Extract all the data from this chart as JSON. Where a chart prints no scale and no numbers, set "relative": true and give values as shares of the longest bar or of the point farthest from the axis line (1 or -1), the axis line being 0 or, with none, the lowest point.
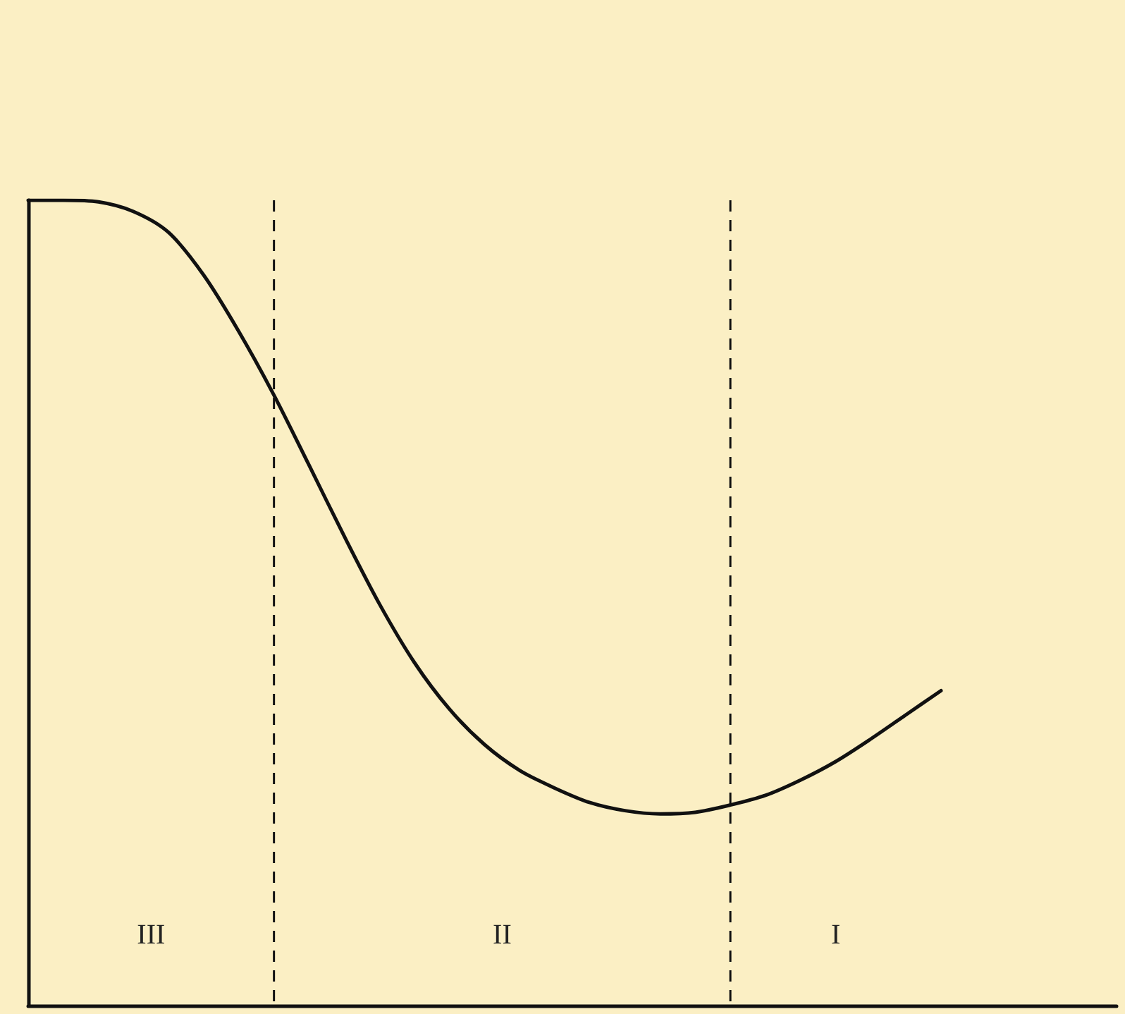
{
  "chart_data": {
    "type": "line",
    "relative": true,
    "color": "#111111",
    "categories": [
      null,
      null,
      null,
      null,
      null,
      null,
      null,
      null,
      null,
      null,
      null,
      null,
      null,
      null,
      null,
      null,
      null,
      null,
      null,
      null,
      null,
      null,
      null,
      null,
      null,
      null,
      null,
      null,
      null,
      null,
      null,
      null
    ],
    "values": [
      1,
      1,
      0.998,
      0.986,
      0.96,
      0.907,
      0.837,
      0.758,
      0.671,
      0.583,
      0.499,
      0.426,
      0.368,
      0.324,
      0.292,
      0.27,
      0.252,
      0.242,
      0.238,
      0.24,
      0.249,
      0.261,
      0.28,
      0.303,
      0.331,
      0.361,
      0.391,
      null,
      null,
      null,
      null,
      null
    ],
    "annotations": [
      "III",
      "II",
      "I"
    ],
    "marker": "none",
    "line_style": "solid"
  }
}
